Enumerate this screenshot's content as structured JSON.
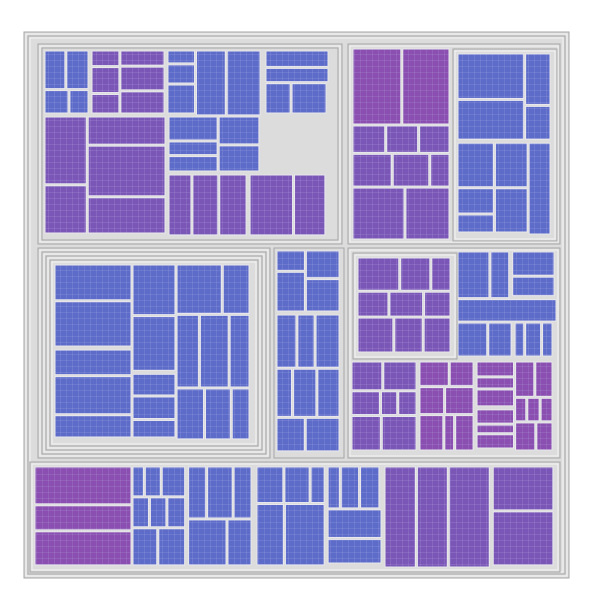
{
  "colors": {
    "background": "#ffffff",
    "frame_fill": "#dcdcdc",
    "frame_light": "#f4f4f4",
    "frame_dark": "#a6a6a6",
    "cell_grid_line": "#c9cdf0",
    "leaf_blue": "#5d6bc9",
    "leaf_violet": "#7a56b6",
    "leaf_purple": "#8a4fb0"
  },
  "description_items": [],
  "legend": [],
  "regions": [
    {
      "name": "top-left-block",
      "tone": "leaf_blue",
      "children": [
        {
          "name": "tl-a",
          "tone": "leaf_blue"
        },
        {
          "name": "tl-b",
          "tone": "leaf_violet"
        },
        {
          "name": "tl-c",
          "tone": "leaf_blue"
        },
        {
          "name": "tl-d",
          "tone": "leaf_blue"
        },
        {
          "name": "tl-e",
          "tone": "leaf_violet"
        },
        {
          "name": "tl-f",
          "tone": "leaf_blue"
        },
        {
          "name": "tl-g",
          "tone": "leaf_violet"
        }
      ]
    },
    {
      "name": "top-right-block",
      "tone": "leaf_violet",
      "children": [
        {
          "name": "tr-a",
          "tone": "leaf_purple"
        },
        {
          "name": "tr-b",
          "tone": "leaf_violet"
        },
        {
          "name": "tr-c",
          "tone": "leaf_blue"
        }
      ]
    },
    {
      "name": "middle-left-block",
      "tone": "leaf_blue",
      "children": [
        {
          "name": "ml-a",
          "tone": "leaf_blue"
        },
        {
          "name": "ml-b",
          "tone": "leaf_blue"
        }
      ]
    },
    {
      "name": "middle-right-block",
      "tone": "leaf_violet",
      "children": [
        {
          "name": "mr-a",
          "tone": "leaf_violet"
        },
        {
          "name": "mr-b",
          "tone": "leaf_blue"
        },
        {
          "name": "mr-c",
          "tone": "leaf_purple"
        }
      ]
    },
    {
      "name": "bottom-block",
      "tone": "leaf_blue",
      "children": [
        {
          "name": "b-a",
          "tone": "leaf_purple"
        },
        {
          "name": "b-b",
          "tone": "leaf_blue"
        },
        {
          "name": "b-c",
          "tone": "leaf_blue"
        },
        {
          "name": "b-d",
          "tone": "leaf_violet"
        }
      ]
    }
  ]
}
